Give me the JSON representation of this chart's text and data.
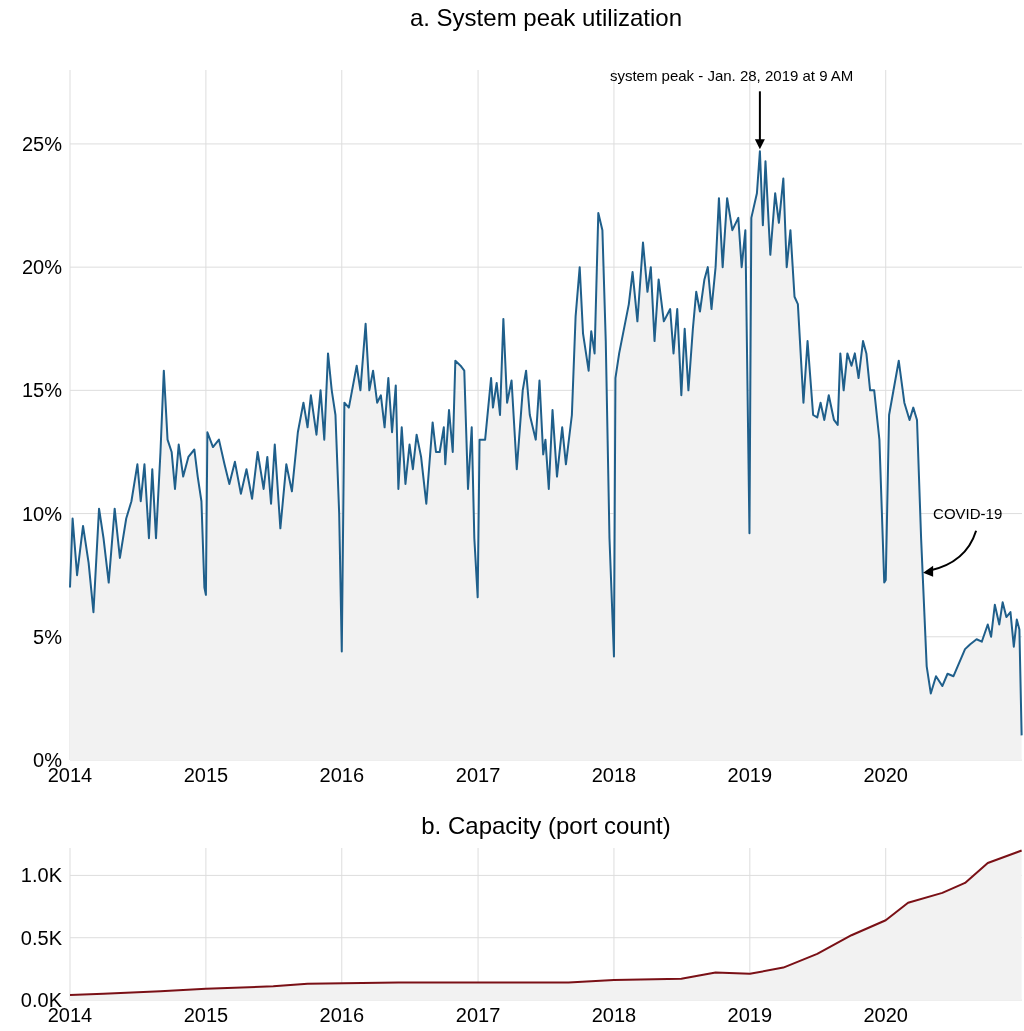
{
  "chart_data": [
    {
      "type": "area",
      "title": "a. System peak utilization",
      "color": "#1f5f8b",
      "x": [
        "2014-01-01",
        "2014-01-08",
        "2014-01-20",
        "2014-02-05",
        "2014-02-20",
        "2014-03-05",
        "2014-03-20",
        "2014-04-01",
        "2014-04-15",
        "2014-05-01",
        "2014-05-15",
        "2014-06-01",
        "2014-06-15",
        "2014-07-01",
        "2014-07-10",
        "2014-07-20",
        "2014-08-01",
        "2014-08-10",
        "2014-08-20",
        "2014-09-01",
        "2014-09-10",
        "2014-09-20",
        "2014-10-01",
        "2014-10-10",
        "2014-10-20",
        "2014-11-01",
        "2014-11-15",
        "2014-12-01",
        "2014-12-10",
        "2014-12-20",
        "2014-12-28",
        "2015-01-01",
        "2015-01-05",
        "2015-01-20",
        "2015-02-05",
        "2015-02-20",
        "2015-03-05",
        "2015-03-20",
        "2015-04-05",
        "2015-04-20",
        "2015-05-05",
        "2015-05-20",
        "2015-06-05",
        "2015-06-15",
        "2015-06-25",
        "2015-07-05",
        "2015-07-20",
        "2015-08-05",
        "2015-08-20",
        "2015-09-05",
        "2015-09-20",
        "2015-10-01",
        "2015-10-10",
        "2015-10-25",
        "2015-11-05",
        "2015-11-15",
        "2015-11-25",
        "2015-12-05",
        "2015-12-15",
        "2015-12-25",
        "2016-01-01",
        "2016-01-08",
        "2016-01-20",
        "2016-02-10",
        "2016-02-20",
        "2016-03-05",
        "2016-03-15",
        "2016-03-25",
        "2016-04-05",
        "2016-04-15",
        "2016-04-25",
        "2016-05-05",
        "2016-05-15",
        "2016-05-25",
        "2016-06-01",
        "2016-06-10",
        "2016-06-20",
        "2016-07-01",
        "2016-07-10",
        "2016-07-20",
        "2016-08-01",
        "2016-08-15",
        "2016-09-01",
        "2016-09-10",
        "2016-09-20",
        "2016-10-01",
        "2016-10-05",
        "2016-10-15",
        "2016-10-25",
        "2016-11-01",
        "2016-11-15",
        "2016-11-25",
        "2016-12-05",
        "2016-12-15",
        "2016-12-22",
        "2016-12-31",
        "2017-01-05",
        "2017-01-20",
        "2017-02-05",
        "2017-02-10",
        "2017-02-20",
        "2017-03-01",
        "2017-03-10",
        "2017-03-20",
        "2017-04-01",
        "2017-04-15",
        "2017-05-01",
        "2017-05-10",
        "2017-05-20",
        "2017-06-05",
        "2017-06-15",
        "2017-06-25",
        "2017-07-01",
        "2017-07-10",
        "2017-07-20",
        "2017-08-01",
        "2017-08-15",
        "2017-08-25",
        "2017-09-10",
        "2017-09-20",
        "2017-10-01",
        "2017-10-10",
        "2017-10-25",
        "2017-11-01",
        "2017-11-10",
        "2017-11-20",
        "2017-12-01",
        "2017-12-10",
        "2017-12-20",
        "2018-01-01",
        "2018-01-05",
        "2018-01-15",
        "2018-02-10",
        "2018-02-20",
        "2018-03-05",
        "2018-03-20",
        "2018-04-01",
        "2018-04-10",
        "2018-04-20",
        "2018-05-01",
        "2018-05-15",
        "2018-06-01",
        "2018-06-10",
        "2018-06-20",
        "2018-07-01",
        "2018-07-10",
        "2018-07-20",
        "2018-08-01",
        "2018-08-10",
        "2018-08-20",
        "2018-09-01",
        "2018-09-10",
        "2018-09-20",
        "2018-10-01",
        "2018-10-10",
        "2018-10-20",
        "2018-11-01",
        "2018-11-15",
        "2018-12-01",
        "2018-12-10",
        "2018-12-20",
        "2018-12-31",
        "2019-01-05",
        "2019-01-20",
        "2019-01-28",
        "2019-02-05",
        "2019-02-12",
        "2019-02-25",
        "2019-03-10",
        "2019-03-20",
        "2019-04-01",
        "2019-04-10",
        "2019-04-20",
        "2019-05-01",
        "2019-05-10",
        "2019-05-25",
        "2019-06-05",
        "2019-06-20",
        "2019-07-01",
        "2019-07-10",
        "2019-07-20",
        "2019-08-01",
        "2019-08-15",
        "2019-08-25",
        "2019-09-01",
        "2019-09-10",
        "2019-09-20",
        "2019-10-01",
        "2019-10-10",
        "2019-10-20",
        "2019-11-01",
        "2019-11-10",
        "2019-11-20",
        "2019-12-01",
        "2019-12-15",
        "2019-12-28",
        "2020-01-01",
        "2020-01-10",
        "2020-02-05",
        "2020-02-20",
        "2020-03-05",
        "2020-03-15",
        "2020-03-25",
        "2020-04-05",
        "2020-04-20",
        "2020-05-01",
        "2020-05-15",
        "2020-06-01",
        "2020-06-15",
        "2020-07-01",
        "2020-08-01",
        "2020-08-15",
        "2020-09-01",
        "2020-09-15",
        "2020-10-01",
        "2020-10-10",
        "2020-10-20",
        "2020-11-01",
        "2020-11-10",
        "2020-11-20",
        "2020-12-01",
        "2020-12-10",
        "2020-12-18",
        "2020-12-25",
        "2020-12-31"
      ],
      "values": [
        7.0,
        9.8,
        7.5,
        9.5,
        8.0,
        6.0,
        10.2,
        9.0,
        7.2,
        10.2,
        8.2,
        9.8,
        10.5,
        12.0,
        10.5,
        12.0,
        9.0,
        11.8,
        9.0,
        12.5,
        15.8,
        13.0,
        12.5,
        11.0,
        12.8,
        11.5,
        12.3,
        12.6,
        11.5,
        10.5,
        7.0,
        6.7,
        13.3,
        12.7,
        13.0,
        12.0,
        11.2,
        12.1,
        10.8,
        11.8,
        10.6,
        12.5,
        11.0,
        12.3,
        10.4,
        12.8,
        9.4,
        12.0,
        10.9,
        13.3,
        14.5,
        13.5,
        14.8,
        13.2,
        15.0,
        13.0,
        16.5,
        15.0,
        14.0,
        10.0,
        4.4,
        14.5,
        14.3,
        16.0,
        15.0,
        17.7,
        15.0,
        15.8,
        14.5,
        14.8,
        13.5,
        15.5,
        13.3,
        15.2,
        11.0,
        13.5,
        11.2,
        12.8,
        11.8,
        13.2,
        12.3,
        10.4,
        13.7,
        12.5,
        12.5,
        13.5,
        12.0,
        14.2,
        12.5,
        16.2,
        16.0,
        15.8,
        11.0,
        13.5,
        9.0,
        6.6,
        13.0,
        13.0,
        15.5,
        14.3,
        15.3,
        14.0,
        17.9,
        14.5,
        15.4,
        11.8,
        15.0,
        15.8,
        14.0,
        13.0,
        15.4,
        12.4,
        13.0,
        11.0,
        14.2,
        11.5,
        13.5,
        12.0,
        14.0,
        18.0,
        20.0,
        17.3,
        15.8,
        17.4,
        16.5,
        22.2,
        21.5,
        17.0,
        9.0,
        4.2,
        15.5,
        16.5,
        18.5,
        19.8,
        17.8,
        21.0,
        19.0,
        20.0,
        17.0,
        19.5,
        17.8,
        18.3,
        16.5,
        18.3,
        14.8,
        17.5,
        15.0,
        17.5,
        19.0,
        18.2,
        19.5,
        20.0,
        18.3,
        20.0,
        22.8,
        20.0,
        22.8,
        21.5,
        22.0,
        20.0,
        21.5,
        9.2,
        22.0,
        23.0,
        24.7,
        21.7,
        24.3,
        20.5,
        23.0,
        21.8,
        23.6,
        20.0,
        21.5,
        18.8,
        18.5,
        14.5,
        17.0,
        14.0,
        13.9,
        14.5,
        13.8,
        14.8,
        13.8,
        13.6,
        16.5,
        15.0,
        16.5,
        16.0,
        16.5,
        15.5,
        17.0,
        16.5,
        15.0,
        15.0,
        13.0,
        7.2,
        7.3,
        14.0,
        16.2,
        14.5,
        13.8,
        14.3,
        13.8,
        9.0,
        3.8,
        2.7,
        3.4,
        3.0,
        3.5,
        3.4,
        4.5,
        4.7,
        4.9,
        4.8,
        5.5,
        5.0,
        6.3,
        5.5,
        6.4,
        5.8,
        6.0,
        4.6,
        5.7,
        5.3,
        1.0
      ],
      "xlim": [
        "2014-01-01",
        "2021-01-01"
      ],
      "xticks": [
        {
          "value": "2014-01-01",
          "label": "2014"
        },
        {
          "value": "2015-01-01",
          "label": "2015"
        },
        {
          "value": "2016-01-01",
          "label": "2016"
        },
        {
          "value": "2017-01-01",
          "label": "2017"
        },
        {
          "value": "2018-01-01",
          "label": "2018"
        },
        {
          "value": "2019-01-01",
          "label": "2019"
        },
        {
          "value": "2020-01-01",
          "label": "2020"
        }
      ],
      "ylim": [
        0,
        28
      ],
      "yticks": [
        {
          "value": 0,
          "label": "0%"
        },
        {
          "value": 5,
          "label": "5%"
        },
        {
          "value": 10,
          "label": "10%"
        },
        {
          "value": 15,
          "label": "15%"
        },
        {
          "value": 20,
          "label": "20%"
        },
        {
          "value": 25,
          "label": "25%"
        }
      ],
      "grid": true,
      "annotations": [
        "system peak -  Jan. 28, 2019 at 9 AM",
        {
          "text": "COVID-19",
          "x": "2020-04-05",
          "y": 7.6
        }
      ]
    },
    {
      "type": "area",
      "title": "b. Capacity (port count)",
      "color": "#7a1016",
      "x": [
        "2014-01-01",
        "2014-04-01",
        "2014-09-01",
        "2015-01-01",
        "2015-07-01",
        "2015-10-01",
        "2016-06-01",
        "2017-09-01",
        "2018-01-01",
        "2018-07-01",
        "2018-10-01",
        "2019-01-01",
        "2019-04-01",
        "2019-07-01",
        "2019-10-01",
        "2020-01-01",
        "2020-03-01",
        "2020-06-01",
        "2020-08-01",
        "2020-10-01",
        "2020-12-31"
      ],
      "values": [
        0.04,
        0.05,
        0.07,
        0.09,
        0.11,
        0.13,
        0.14,
        0.14,
        0.16,
        0.17,
        0.22,
        0.21,
        0.26,
        0.37,
        0.52,
        0.64,
        0.78,
        0.86,
        0.94,
        1.1,
        1.2
      ],
      "xlim": [
        "2014-01-01",
        "2021-01-01"
      ],
      "xticks": [
        {
          "value": "2014-01-01",
          "label": "2014"
        },
        {
          "value": "2015-01-01",
          "label": "2015"
        },
        {
          "value": "2016-01-01",
          "label": "2016"
        },
        {
          "value": "2017-01-01",
          "label": "2017"
        },
        {
          "value": "2018-01-01",
          "label": "2018"
        },
        {
          "value": "2019-01-01",
          "label": "2019"
        },
        {
          "value": "2020-01-01",
          "label": "2020"
        }
      ],
      "ylim": [
        0,
        1.22
      ],
      "yticks": [
        {
          "value": 0,
          "label": "0.0K"
        },
        {
          "value": 0.5,
          "label": "0.5K"
        },
        {
          "value": 1,
          "label": "1.0K"
        }
      ],
      "grid": true
    }
  ]
}
